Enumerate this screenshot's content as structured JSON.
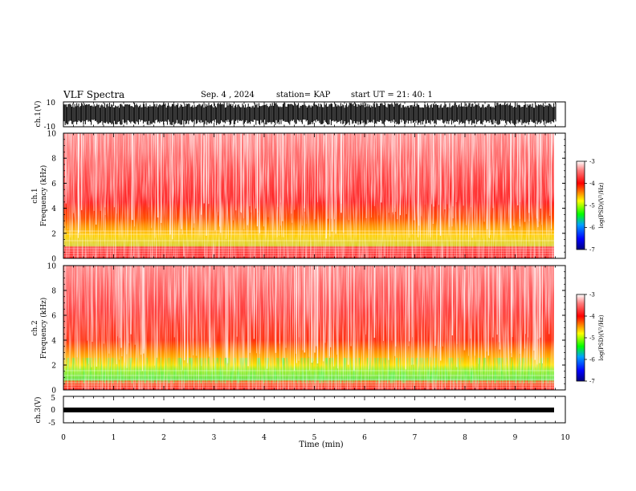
{
  "header": {
    "title": "VLF Spectra",
    "date": "Sep. 4 , 2024",
    "station": "station= KAP",
    "start_ut": "start UT =   21: 40: 1"
  },
  "colors": {
    "low": "#000080",
    "blue": "#0000ff",
    "cyan": "#00a0ff",
    "green": "#00ff00",
    "yellow": "#ffff00",
    "orange": "#ff8000",
    "red": "#ff0000",
    "pink": "#ffb0b0",
    "white": "#ffffff"
  },
  "chart_data": [
    {
      "type": "line",
      "panel": "ch1_waveform",
      "ylabel": "ch.1(V)",
      "ylim": [
        -10,
        10
      ],
      "yticks": [
        "10",
        "-10"
      ],
      "xlim": [
        0,
        10
      ],
      "trace": "black dense waveform spanning roughly -10 to 10 V"
    },
    {
      "type": "heatmap",
      "panel": "ch1_spectrogram",
      "ylabel": [
        "ch.1",
        "Frequency (kHz)"
      ],
      "ylim": [
        0,
        10
      ],
      "yticks": [
        "0",
        "2",
        "4",
        "6",
        "8",
        "10"
      ],
      "xlim": [
        0,
        10
      ],
      "data_end_min": 9.82,
      "colorbar": {
        "label": "log(PSD)(V²/Hz)",
        "range": [
          -7,
          -3
        ],
        "ticks": [
          "-3",
          "-4",
          "-5",
          "-6",
          "-7"
        ]
      },
      "band_profile": [
        {
          "freq_khz": [
            0,
            0.9
          ],
          "level": "red with horizontal lines"
        },
        {
          "freq_khz": [
            1,
            2.6
          ],
          "level": "yellow/green"
        },
        {
          "freq_khz": [
            2.6,
            4.5
          ],
          "level": "orange/yellow"
        },
        {
          "freq_khz": [
            4.5,
            10
          ],
          "level": "red to pink"
        }
      ]
    },
    {
      "type": "heatmap",
      "panel": "ch2_spectrogram",
      "ylabel": [
        "ch.2",
        "Frequency (kHz)"
      ],
      "ylim": [
        0,
        10
      ],
      "yticks": [
        "0",
        "2",
        "4",
        "6",
        "8",
        "10"
      ],
      "xlim": [
        0,
        10
      ],
      "data_end_min": 9.82,
      "colorbar": {
        "label": "log(PSD)(V²/Hz)",
        "range": [
          -7,
          -3
        ],
        "ticks": [
          "-3",
          "-4",
          "-5",
          "-6",
          "-7"
        ]
      },
      "band_profile": [
        {
          "freq_khz": [
            0,
            0.8
          ],
          "level": "red with horizontal lines"
        },
        {
          "freq_khz": [
            0.8,
            2.0
          ],
          "level": "green"
        },
        {
          "freq_khz": [
            2.0,
            4.0
          ],
          "level": "yellow/orange"
        },
        {
          "freq_khz": [
            4.0,
            10
          ],
          "level": "red to pink"
        }
      ]
    },
    {
      "type": "line",
      "panel": "ch3_waveform",
      "ylabel": "ch.3(V)",
      "ylim": [
        -5,
        5
      ],
      "yticks": [
        "5",
        "0",
        "-5"
      ],
      "xlim": [
        0,
        10
      ],
      "trace": "black thick band near 0 V"
    }
  ],
  "xaxis": {
    "label": "Time (min)",
    "ticks": [
      "0",
      "1",
      "2",
      "3",
      "4",
      "5",
      "6",
      "7",
      "8",
      "9",
      "10"
    ]
  }
}
